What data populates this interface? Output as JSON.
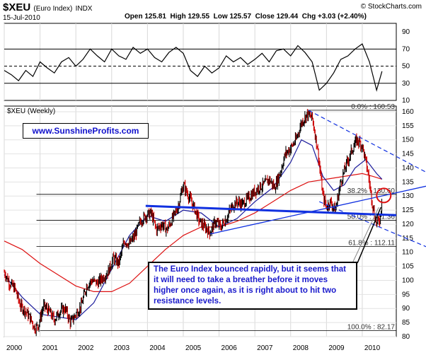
{
  "header": {
    "symbol": "$XEU",
    "name": "(Euro Index)",
    "exchange": "INDX",
    "date": "15-Jul-2010",
    "credit": "© StockCharts.com",
    "open_label": "Open",
    "open": "125.81",
    "high_label": "High",
    "high": "129.55",
    "low_label": "Low",
    "low": "125.57",
    "close_label": "Close",
    "close": "129.44",
    "chg_label": "Chg",
    "chg": "+3.03 (+2.40%)",
    "price_panel_label": "$XEU (Weekly)"
  },
  "website_label": "www.SunshineProfits.com",
  "annotation_text": "The Euro Index bounced rapidly, but it seems that it will need  to take a breather before it moves higher once again, as it is right about to hit two resistance levels.",
  "colors": {
    "price_bar": "#000000",
    "down_bar": "#cc0000",
    "ma_short": "#1c1c9c",
    "ma_long": "#dd1111",
    "trendline": "#1030e0",
    "annotation_text": "#1a1acc",
    "fib_line": "#000000"
  },
  "chart_data": [
    {
      "type": "line",
      "panel": "rsi",
      "ylim": [
        10,
        100
      ],
      "yticks": [
        10,
        30,
        50,
        70,
        90
      ],
      "reference_lines": [
        30,
        50,
        70
      ],
      "series": [
        {
          "x": [
            2000.0,
            2000.2,
            2000.4,
            2000.6,
            2000.8,
            2001.0,
            2001.2,
            2001.4,
            2001.6,
            2001.8,
            2002.0,
            2002.2,
            2002.4,
            2002.6,
            2002.8,
            2003.0,
            2003.2,
            2003.4,
            2003.6,
            2003.8,
            2004.0,
            2004.2,
            2004.4,
            2004.6,
            2004.8,
            2005.0,
            2005.2,
            2005.4,
            2005.6,
            2005.8,
            2006.0,
            2006.2,
            2006.4,
            2006.6,
            2006.8,
            2007.0,
            2007.2,
            2007.4,
            2007.6,
            2007.8,
            2008.0,
            2008.2,
            2008.4,
            2008.6,
            2008.8,
            2009.0,
            2009.2,
            2009.4,
            2009.6,
            2009.8,
            2010.0,
            2010.2,
            2010.4,
            2010.55
          ],
          "values": [
            45,
            40,
            33,
            45,
            38,
            55,
            48,
            42,
            55,
            60,
            50,
            58,
            70,
            62,
            55,
            70,
            62,
            58,
            72,
            65,
            70,
            60,
            55,
            66,
            72,
            65,
            45,
            38,
            50,
            42,
            48,
            62,
            55,
            60,
            52,
            58,
            65,
            55,
            68,
            70,
            62,
            74,
            66,
            55,
            22,
            30,
            42,
            58,
            62,
            70,
            76,
            55,
            22,
            44
          ]
        }
      ]
    },
    {
      "type": "line",
      "panel": "price",
      "title": "$XEU (Weekly)",
      "ylim": [
        80,
        162
      ],
      "yticks": [
        80,
        85,
        90,
        95,
        100,
        105,
        110,
        115,
        120,
        125,
        130,
        135,
        140,
        145,
        150,
        155,
        160
      ],
      "xlim": [
        2000,
        2010.95
      ],
      "xticks": [
        "2000",
        "2001",
        "2002",
        "2003",
        "2004",
        "2005",
        "2006",
        "2007",
        "2008",
        "2009",
        "2010"
      ],
      "fib_levels": [
        {
          "label": "0.0% : 160.53",
          "value": 160.53
        },
        {
          "label": "38.2% : 130.60",
          "value": 130.6
        },
        {
          "label": "50.0% : 121.36",
          "value": 121.36
        },
        {
          "label": "61.8% : 112.11",
          "value": 112.11
        },
        {
          "label": "100.0% : 82.17",
          "value": 82.17
        }
      ],
      "series": [
        {
          "x": [
            2000.0,
            2000.15,
            2000.3,
            2000.45,
            2000.6,
            2000.75,
            2000.85,
            2000.95,
            2001.1,
            2001.25,
            2001.4,
            2001.55,
            2001.7,
            2001.85,
            2002.0,
            2002.15,
            2002.3,
            2002.45,
            2002.6,
            2002.75,
            2002.9,
            2003.05,
            2003.2,
            2003.35,
            2003.5,
            2003.65,
            2003.8,
            2003.95,
            2004.1,
            2004.25,
            2004.4,
            2004.55,
            2004.7,
            2004.85,
            2005.0,
            2005.15,
            2005.3,
            2005.45,
            2005.6,
            2005.75,
            2005.9,
            2006.05,
            2006.2,
            2006.35,
            2006.5,
            2006.65,
            2006.8,
            2006.95,
            2007.1,
            2007.25,
            2007.4,
            2007.55,
            2007.7,
            2007.85,
            2008.0,
            2008.15,
            2008.3,
            2008.45,
            2008.6,
            2008.75,
            2008.9,
            2009.0,
            2009.1,
            2009.25,
            2009.4,
            2009.55,
            2009.7,
            2009.85,
            2010.0,
            2010.15,
            2010.3,
            2010.4,
            2010.5,
            2010.55
          ],
          "values": [
            103,
            99,
            97,
            91,
            89,
            86,
            83,
            84,
            91,
            89,
            86,
            89,
            90,
            85,
            88,
            91,
            98,
            100,
            99,
            101,
            103,
            108,
            106,
            114,
            113,
            116,
            121,
            123,
            124,
            118,
            120,
            118,
            122,
            126,
            134,
            130,
            126,
            121,
            119,
            117,
            121,
            119,
            122,
            126,
            128,
            127,
            129,
            131,
            133,
            134,
            136,
            133,
            138,
            145,
            147,
            150,
            156,
            159,
            158,
            147,
            130,
            126,
            128,
            125,
            135,
            141,
            146,
            150,
            148,
            139,
            126,
            120,
            122,
            129.44
          ]
        },
        {
          "name": "",
          "x": [
            2000.0,
            2000.5,
            2001.0,
            2001.5,
            2002.0,
            2002.5,
            2003.0,
            2003.5,
            2004.0,
            2004.5,
            2005.0,
            2005.5,
            2006.0,
            2006.5,
            2007.0,
            2007.5,
            2008.0,
            2008.3,
            2008.6,
            2008.9,
            2009.2,
            2009.5,
            2009.8,
            2010.1,
            2010.4,
            2010.55
          ],
          "values": [
            102,
            94,
            88,
            87,
            86,
            92,
            104,
            116,
            123,
            121,
            125,
            124,
            119,
            122,
            128,
            133,
            142,
            150,
            148,
            137,
            132,
            134,
            140,
            143,
            138,
            136
          ]
        },
        {
          "name": "",
          "x": [
            2000.0,
            2000.5,
            2001.0,
            2001.5,
            2002.0,
            2002.5,
            2003.0,
            2003.5,
            2004.0,
            2004.5,
            2005.0,
            2005.5,
            2006.0,
            2006.5,
            2007.0,
            2007.5,
            2008.0,
            2008.5,
            2009.0,
            2009.5,
            2010.0,
            2010.3,
            2010.55
          ],
          "values": [
            114,
            111,
            106,
            102,
            98,
            96,
            96,
            99,
            105,
            111,
            116,
            119,
            119,
            121,
            124,
            128,
            132,
            135,
            136,
            137,
            138,
            137,
            136
          ]
        }
      ]
    }
  ]
}
